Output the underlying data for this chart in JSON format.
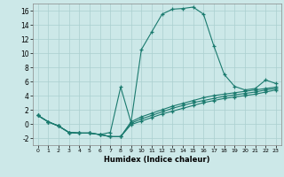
{
  "xlabel": "Humidex (Indice chaleur)",
  "background_color": "#cce8e8",
  "grid_color": "#aacfcf",
  "line_color": "#1a7a6e",
  "xlim": [
    -0.5,
    23.5
  ],
  "ylim": [
    -3,
    17
  ],
  "xticks": [
    0,
    1,
    2,
    3,
    4,
    5,
    6,
    7,
    8,
    9,
    10,
    11,
    12,
    13,
    14,
    15,
    16,
    17,
    18,
    19,
    20,
    21,
    22,
    23
  ],
  "yticks": [
    -2,
    0,
    2,
    4,
    6,
    8,
    10,
    12,
    14,
    16
  ],
  "series1": [
    [
      0,
      1.2
    ],
    [
      1,
      0.3
    ],
    [
      2,
      -0.3
    ],
    [
      3,
      -1.2
    ],
    [
      4,
      -1.3
    ],
    [
      5,
      -1.3
    ],
    [
      6,
      -1.5
    ],
    [
      7,
      -1.2
    ],
    [
      8,
      5.2
    ],
    [
      9,
      0.2
    ],
    [
      10,
      10.5
    ],
    [
      11,
      13.0
    ],
    [
      12,
      15.5
    ],
    [
      13,
      16.2
    ],
    [
      14,
      16.3
    ],
    [
      15,
      16.5
    ],
    [
      16,
      15.5
    ],
    [
      17,
      11.0
    ],
    [
      18,
      7.0
    ],
    [
      19,
      5.3
    ],
    [
      20,
      4.8
    ],
    [
      21,
      5.0
    ],
    [
      22,
      6.2
    ],
    [
      23,
      5.7
    ]
  ],
  "series2": [
    [
      0,
      1.2
    ],
    [
      1,
      0.3
    ],
    [
      2,
      -0.3
    ],
    [
      3,
      -1.2
    ],
    [
      4,
      -1.3
    ],
    [
      5,
      -1.3
    ],
    [
      6,
      -1.5
    ],
    [
      7,
      -1.8
    ],
    [
      8,
      -1.8
    ],
    [
      9,
      0.3
    ],
    [
      10,
      1.0
    ],
    [
      11,
      1.5
    ],
    [
      12,
      2.0
    ],
    [
      13,
      2.5
    ],
    [
      14,
      2.9
    ],
    [
      15,
      3.3
    ],
    [
      16,
      3.7
    ],
    [
      17,
      4.0
    ],
    [
      18,
      4.2
    ],
    [
      19,
      4.4
    ],
    [
      20,
      4.6
    ],
    [
      21,
      4.8
    ],
    [
      22,
      5.0
    ],
    [
      23,
      5.2
    ]
  ],
  "series3": [
    [
      0,
      1.2
    ],
    [
      1,
      0.3
    ],
    [
      2,
      -0.3
    ],
    [
      3,
      -1.2
    ],
    [
      4,
      -1.3
    ],
    [
      5,
      -1.3
    ],
    [
      6,
      -1.5
    ],
    [
      7,
      -1.8
    ],
    [
      8,
      -1.8
    ],
    [
      9,
      0.1
    ],
    [
      10,
      0.7
    ],
    [
      11,
      1.2
    ],
    [
      12,
      1.7
    ],
    [
      13,
      2.2
    ],
    [
      14,
      2.6
    ],
    [
      15,
      3.0
    ],
    [
      16,
      3.3
    ],
    [
      17,
      3.6
    ],
    [
      18,
      3.9
    ],
    [
      19,
      4.1
    ],
    [
      20,
      4.3
    ],
    [
      21,
      4.5
    ],
    [
      22,
      4.8
    ],
    [
      23,
      5.0
    ]
  ],
  "series4": [
    [
      0,
      1.2
    ],
    [
      1,
      0.3
    ],
    [
      2,
      -0.3
    ],
    [
      3,
      -1.2
    ],
    [
      4,
      -1.3
    ],
    [
      5,
      -1.3
    ],
    [
      6,
      -1.5
    ],
    [
      7,
      -1.8
    ],
    [
      8,
      -1.8
    ],
    [
      9,
      -0.1
    ],
    [
      10,
      0.4
    ],
    [
      11,
      0.9
    ],
    [
      12,
      1.4
    ],
    [
      13,
      1.8
    ],
    [
      14,
      2.2
    ],
    [
      15,
      2.6
    ],
    [
      16,
      3.0
    ],
    [
      17,
      3.3
    ],
    [
      18,
      3.6
    ],
    [
      19,
      3.8
    ],
    [
      20,
      4.0
    ],
    [
      21,
      4.2
    ],
    [
      22,
      4.5
    ],
    [
      23,
      4.8
    ]
  ]
}
